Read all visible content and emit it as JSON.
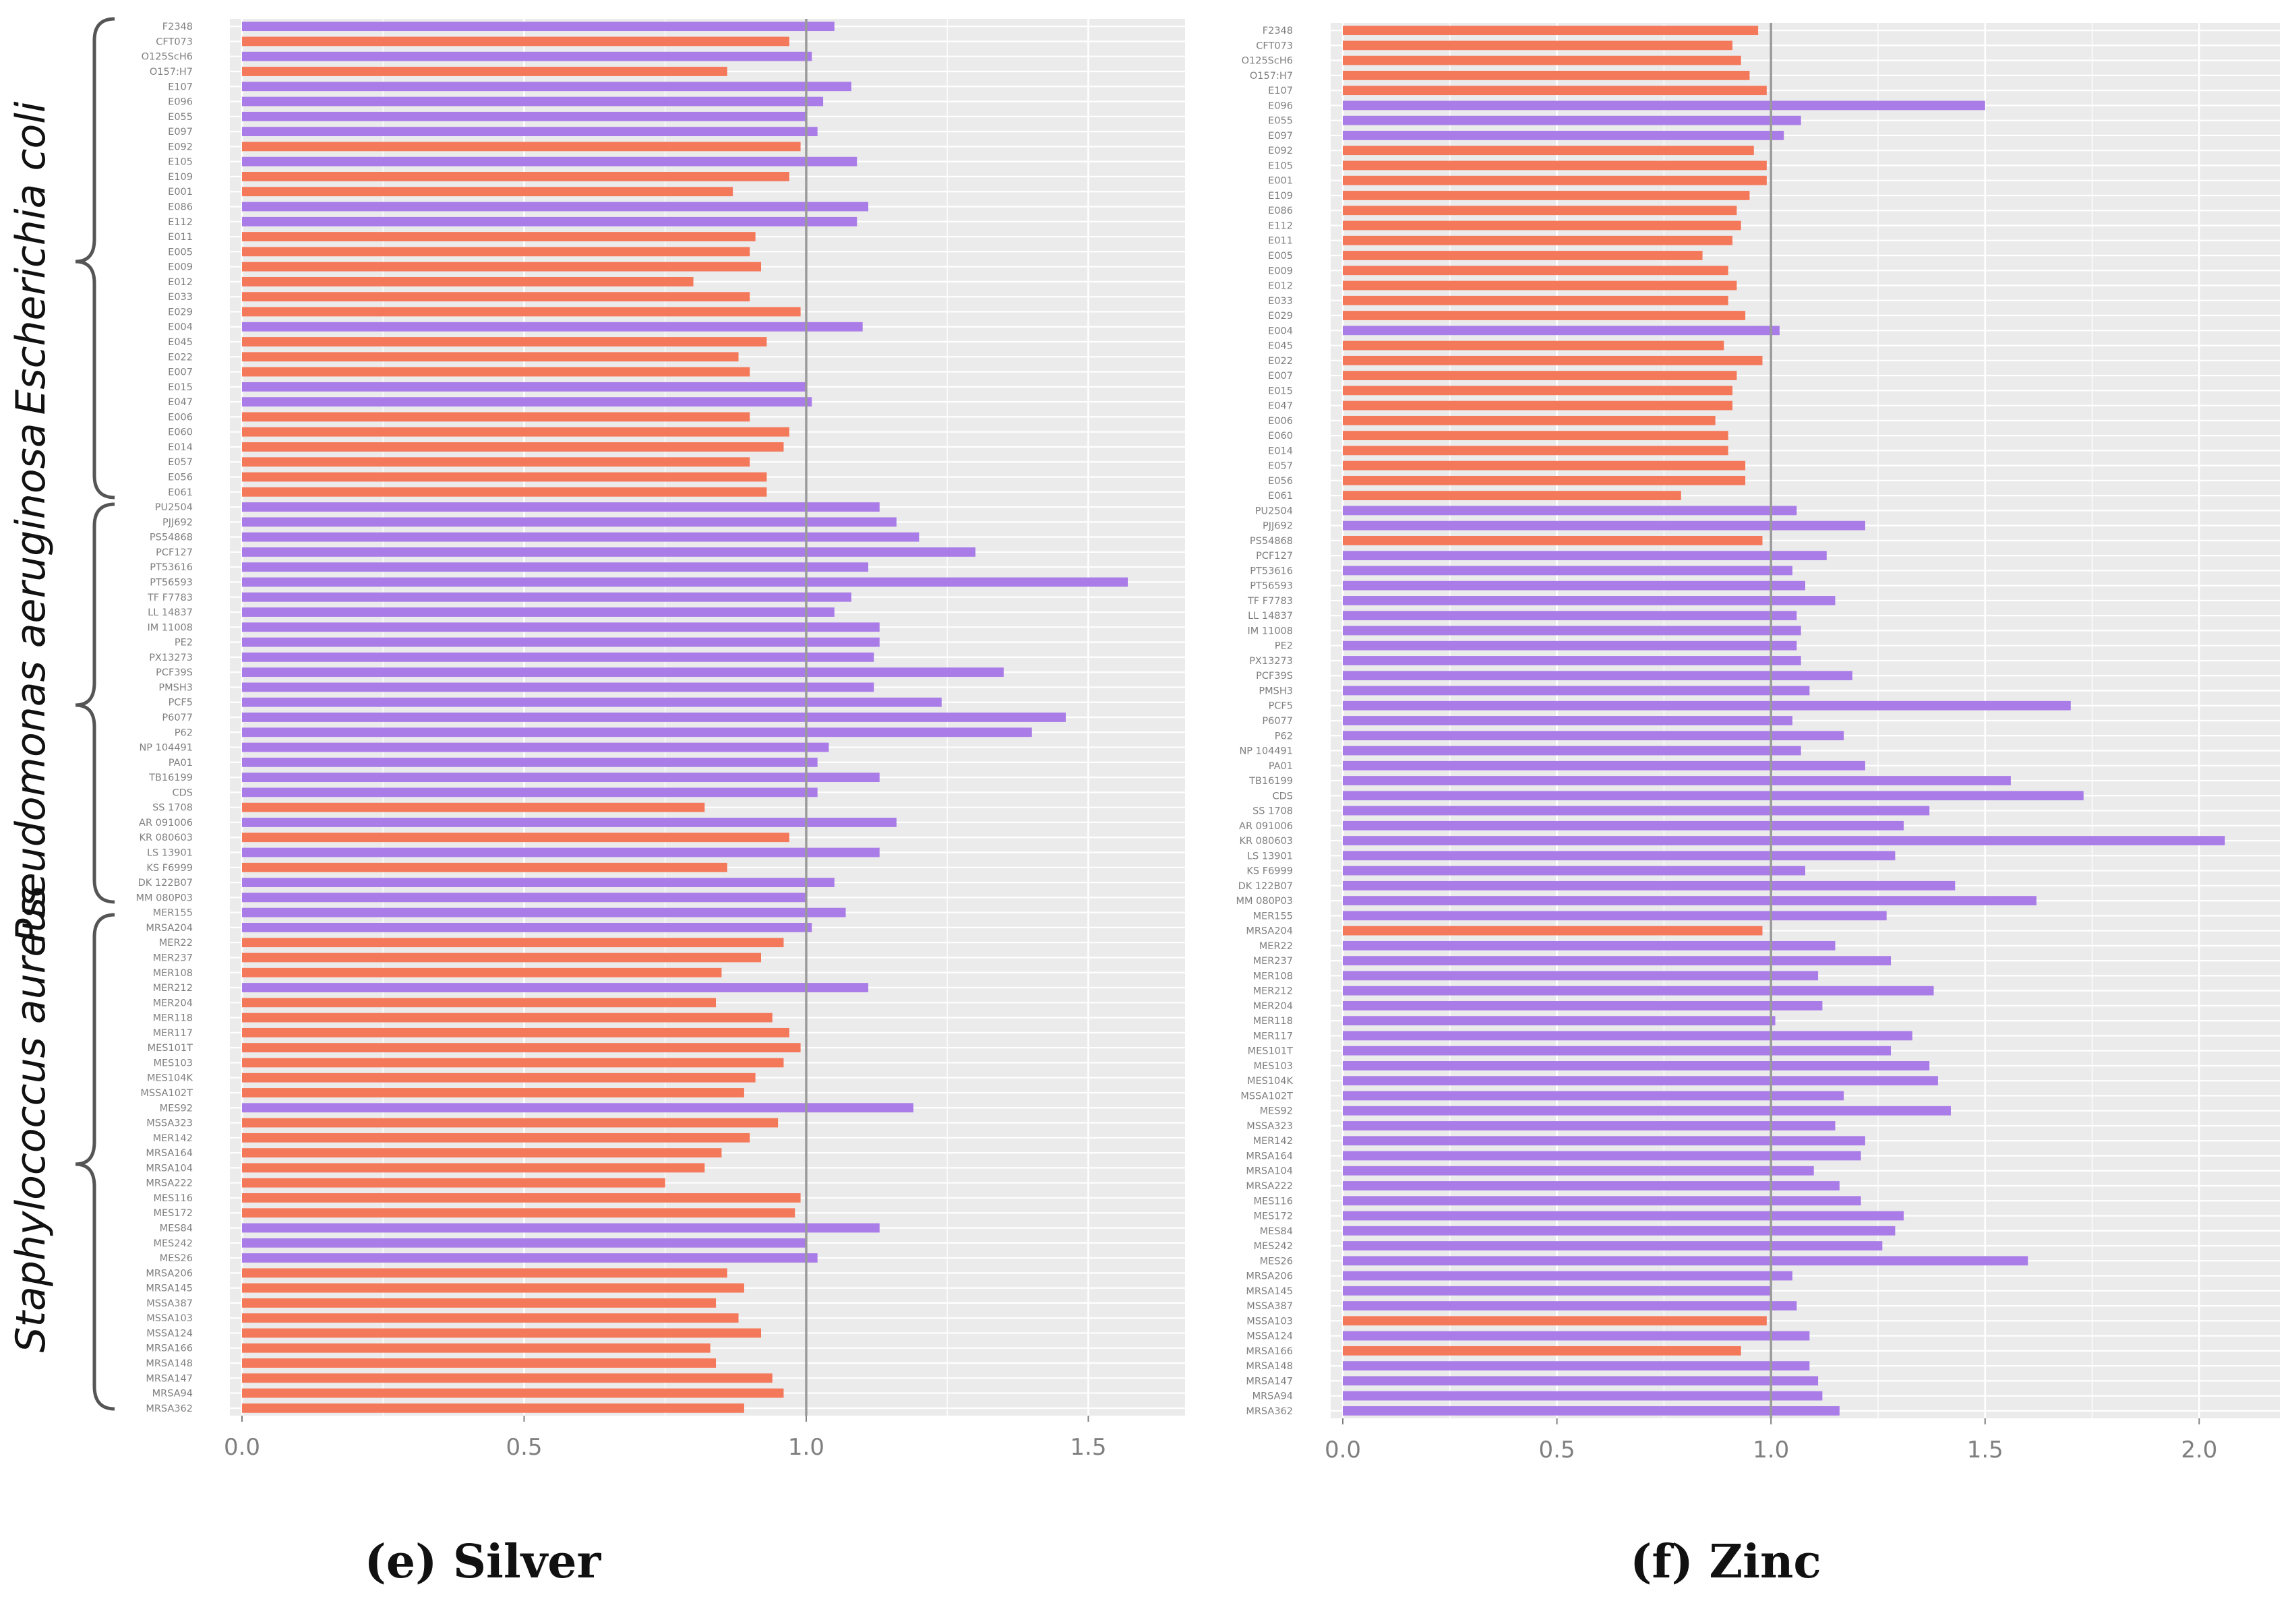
{
  "colors": {
    "above": "#a97ce8",
    "below": "#f4785a",
    "panel_bg": "#ebebeb",
    "grid": "#ffffff",
    "ref_line": "#9a9a9a"
  },
  "groups": [
    "Escherichia coli",
    "Pseudomonas aeruginosa",
    "Staphylococcus aureus"
  ],
  "chart_data": [
    {
      "type": "bar",
      "orientation": "horizontal",
      "title": "(e) Silver",
      "reference_line": 1.0,
      "xlim": [
        0,
        1.65
      ],
      "xticks": [
        "0.0",
        "0.5",
        "1.0",
        "1.5"
      ],
      "xtick_values": [
        0,
        0.5,
        1.0,
        1.5
      ],
      "categories": [
        "F2348",
        "CFT073",
        "O125ScH6",
        "O157:H7",
        "E107",
        "E096",
        "E055",
        "E097",
        "E092",
        "E105",
        "E109",
        "E001",
        "E086",
        "E112",
        "E011",
        "E005",
        "E009",
        "E012",
        "E033",
        "E029",
        "E004",
        "E045",
        "E022",
        "E007",
        "E015",
        "E047",
        "E006",
        "E060",
        "E014",
        "E057",
        "E056",
        "E061",
        "PU2504",
        "PJJ692",
        "PS54868",
        "PCF127",
        "PT53616",
        "PT56593",
        "TF F7783",
        "LL 14837",
        "IM 11008",
        "PE2",
        "PX13273",
        "PCF39S",
        "PMSH3",
        "PCF5",
        "P6077",
        "P62",
        "NP 104491",
        "PA01",
        "TB16199",
        "CDS",
        "SS 1708",
        "AR 091006",
        "KR 080603",
        "LS 13901",
        "KS F6999",
        "DK 122B07",
        "MM 080P03",
        "MER155",
        "MRSA204",
        "MER22",
        "MER237",
        "MER108",
        "MER212",
        "MER204",
        "MER118",
        "MER117",
        "MES101T",
        "MES103",
        "MES104K",
        "MSSA102T",
        "MES92",
        "MSSA323",
        "MER142",
        "MRSA164",
        "MRSA104",
        "MRSA222",
        "MES116",
        "MES172",
        "MES84",
        "MES242",
        "MES26",
        "MRSA206",
        "MRSA145",
        "MSSA387",
        "MSSA103",
        "MSSA124",
        "MRSA166",
        "MRSA148",
        "MRSA147",
        "MRSA94",
        "MRSA362"
      ],
      "values": [
        1.05,
        0.97,
        1.01,
        0.86,
        1.08,
        1.03,
        1.0,
        1.02,
        0.99,
        1.09,
        0.97,
        0.87,
        1.11,
        1.09,
        0.91,
        0.9,
        0.92,
        0.8,
        0.9,
        0.99,
        1.1,
        0.93,
        0.88,
        0.9,
        1.0,
        1.01,
        0.9,
        0.97,
        0.96,
        0.9,
        0.93,
        0.93,
        1.13,
        1.16,
        1.2,
        1.3,
        1.11,
        1.57,
        1.08,
        1.05,
        1.13,
        1.13,
        1.12,
        1.35,
        1.12,
        1.24,
        1.46,
        1.4,
        1.04,
        1.02,
        1.13,
        1.02,
        0.82,
        1.16,
        0.97,
        1.13,
        0.86,
        1.05,
        1.0,
        1.07,
        1.01,
        0.96,
        0.92,
        0.85,
        1.11,
        0.84,
        0.94,
        0.97,
        0.99,
        0.96,
        0.91,
        0.89,
        1.19,
        0.95,
        0.9,
        0.85,
        0.82,
        0.75,
        0.99,
        0.98,
        1.13,
        1.0,
        1.02,
        0.86,
        0.89,
        0.84,
        0.88,
        0.92,
        0.83,
        0.84,
        0.94,
        0.96,
        0.89
      ]
    },
    {
      "type": "bar",
      "orientation": "horizontal",
      "title": "(f) Zinc",
      "reference_line": 1.0,
      "xlim": [
        0,
        2.16
      ],
      "xticks": [
        "0.0",
        "0.5",
        "1.0",
        "1.5",
        "2.0"
      ],
      "xtick_values": [
        0,
        0.5,
        1.0,
        1.5,
        2.0
      ],
      "categories": [
        "F2348",
        "CFT073",
        "O125ScH6",
        "O157:H7",
        "E107",
        "E096",
        "E055",
        "E097",
        "E092",
        "E105",
        "E001",
        "E109",
        "E086",
        "E112",
        "E011",
        "E005",
        "E009",
        "E012",
        "E033",
        "E029",
        "E004",
        "E045",
        "E022",
        "E007",
        "E015",
        "E047",
        "E006",
        "E060",
        "E014",
        "E057",
        "E056",
        "E061",
        "PU2504",
        "PJJ692",
        "PS54868",
        "PCF127",
        "PT53616",
        "PT56593",
        "TF F7783",
        "LL 14837",
        "IM 11008",
        "PE2",
        "PX13273",
        "PCF39S",
        "PMSH3",
        "PCF5",
        "P6077",
        "P62",
        "NP 104491",
        "PA01",
        "TB16199",
        "CDS",
        "SS 1708",
        "AR 091006",
        "KR 080603",
        "LS 13901",
        "KS F6999",
        "DK 122B07",
        "MM 080P03",
        "MER155",
        "MRSA204",
        "MER22",
        "MER237",
        "MER108",
        "MER212",
        "MER204",
        "MER118",
        "MER117",
        "MES101T",
        "MES103",
        "MES104K",
        "MSSA102T",
        "MES92",
        "MSSA323",
        "MER142",
        "MRSA164",
        "MRSA104",
        "MRSA222",
        "MES116",
        "MES172",
        "MES84",
        "MES242",
        "MES26",
        "MRSA206",
        "MRSA145",
        "MSSA387",
        "MSSA103",
        "MSSA124",
        "MRSA166",
        "MRSA148",
        "MRSA147",
        "MRSA94",
        "MRSA362"
      ],
      "values": [
        0.97,
        0.91,
        0.93,
        0.95,
        0.99,
        1.5,
        1.07,
        1.03,
        0.96,
        0.99,
        0.99,
        0.95,
        0.92,
        0.93,
        0.91,
        0.84,
        0.9,
        0.92,
        0.9,
        0.94,
        1.02,
        0.89,
        0.98,
        0.92,
        0.91,
        0.91,
        0.87,
        0.9,
        0.9,
        0.94,
        0.94,
        0.79,
        1.06,
        1.22,
        0.98,
        1.13,
        1.05,
        1.08,
        1.15,
        1.06,
        1.07,
        1.06,
        1.07,
        1.19,
        1.09,
        1.7,
        1.05,
        1.17,
        1.07,
        1.22,
        1.56,
        1.73,
        1.37,
        1.31,
        2.06,
        1.29,
        1.08,
        1.43,
        1.62,
        1.27,
        0.98,
        1.15,
        1.28,
        1.11,
        1.38,
        1.12,
        1.01,
        1.33,
        1.28,
        1.37,
        1.39,
        1.17,
        1.42,
        1.15,
        1.22,
        1.21,
        1.1,
        1.16,
        1.21,
        1.31,
        1.29,
        1.26,
        1.6,
        1.05,
        1.0,
        1.06,
        0.99,
        1.09,
        0.93,
        1.09,
        1.11,
        1.12,
        1.16
      ]
    }
  ]
}
